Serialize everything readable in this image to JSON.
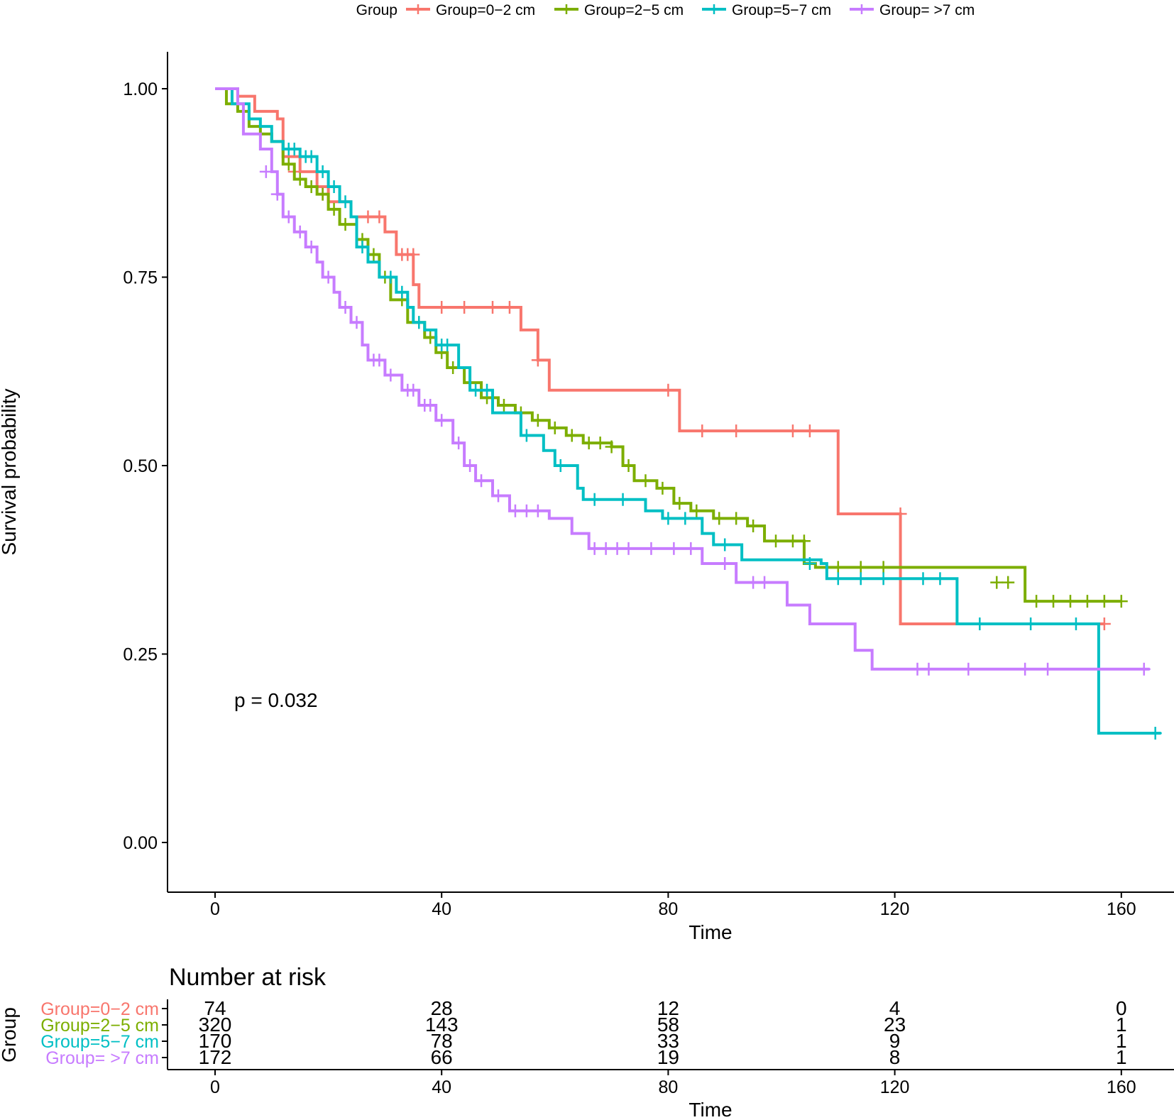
{
  "legend": {
    "title": "Group",
    "items": [
      {
        "label": "Group=0−2 cm"
      },
      {
        "label": "Group=2−5 cm"
      },
      {
        "label": "Group=5−7 cm"
      },
      {
        "label": "Group= >7 cm"
      }
    ]
  },
  "annotation": "p = 0.032",
  "risk_table": {
    "title": "Number at risk",
    "ylabel": "Group",
    "xlabel": "Time"
  },
  "chart_data": {
    "type": "line",
    "subtype": "kaplan-meier",
    "title": "",
    "xlabel": "Time",
    "ylabel": "Survival probability",
    "xlim": [
      -8,
      168
    ],
    "ylim": [
      -0.05,
      1.05
    ],
    "xticks": [
      0,
      40,
      80,
      120,
      160
    ],
    "yticks": [
      0,
      0.25,
      0.5,
      0.75,
      1.0
    ],
    "ytick_labels": [
      "0.00",
      "0.25",
      "0.50",
      "0.75",
      "1.00"
    ],
    "legend_position": "top",
    "series": [
      {
        "name": "Group=0−2 cm",
        "color": "#F8766D",
        "steps": [
          [
            0,
            1.0
          ],
          [
            4,
            0.99
          ],
          [
            7,
            0.97
          ],
          [
            11,
            0.96
          ],
          [
            12,
            0.91
          ],
          [
            15,
            0.89
          ],
          [
            18,
            0.87
          ],
          [
            20,
            0.85
          ],
          [
            24,
            0.83
          ],
          [
            30,
            0.81
          ],
          [
            32,
            0.78
          ],
          [
            35,
            0.74
          ],
          [
            36,
            0.71
          ],
          [
            54,
            0.68
          ],
          [
            57,
            0.64
          ],
          [
            59,
            0.6
          ],
          [
            82,
            0.546
          ],
          [
            110,
            0.436
          ],
          [
            121,
            0.29
          ],
          [
            157,
            0.29
          ]
        ],
        "censors": [
          [
            14,
            0.89
          ],
          [
            19,
            0.86
          ],
          [
            27,
            0.83
          ],
          [
            29,
            0.83
          ],
          [
            33,
            0.78
          ],
          [
            34,
            0.78
          ],
          [
            35,
            0.78
          ],
          [
            40,
            0.71
          ],
          [
            44,
            0.71
          ],
          [
            49,
            0.71
          ],
          [
            52,
            0.71
          ],
          [
            57,
            0.64
          ],
          [
            80,
            0.6
          ],
          [
            86,
            0.546
          ],
          [
            92,
            0.546
          ],
          [
            102,
            0.546
          ],
          [
            105,
            0.546
          ],
          [
            121,
            0.436
          ],
          [
            157,
            0.29
          ]
        ]
      },
      {
        "name": "Group=2−5 cm",
        "color": "#7CAE00",
        "steps": [
          [
            0,
            1.0
          ],
          [
            2,
            0.98
          ],
          [
            4,
            0.97
          ],
          [
            6,
            0.95
          ],
          [
            8,
            0.94
          ],
          [
            10,
            0.93
          ],
          [
            12,
            0.9
          ],
          [
            14,
            0.88
          ],
          [
            16,
            0.87
          ],
          [
            18,
            0.86
          ],
          [
            20,
            0.84
          ],
          [
            22,
            0.82
          ],
          [
            25,
            0.8
          ],
          [
            27,
            0.78
          ],
          [
            29,
            0.75
          ],
          [
            31,
            0.72
          ],
          [
            34,
            0.69
          ],
          [
            37,
            0.67
          ],
          [
            39,
            0.65
          ],
          [
            41,
            0.63
          ],
          [
            44,
            0.61
          ],
          [
            47,
            0.59
          ],
          [
            50,
            0.58
          ],
          [
            53,
            0.57
          ],
          [
            56,
            0.56
          ],
          [
            59,
            0.55
          ],
          [
            62,
            0.54
          ],
          [
            65,
            0.53
          ],
          [
            70,
            0.525
          ],
          [
            72,
            0.5
          ],
          [
            74,
            0.48
          ],
          [
            78,
            0.47
          ],
          [
            81,
            0.45
          ],
          [
            84,
            0.44
          ],
          [
            88,
            0.43
          ],
          [
            94,
            0.42
          ],
          [
            97,
            0.4
          ],
          [
            104,
            0.37
          ],
          [
            106,
            0.365
          ],
          [
            121,
            0.365
          ],
          [
            143,
            0.32
          ],
          [
            160,
            0.32
          ]
        ],
        "censors": [
          [
            13,
            0.9
          ],
          [
            15,
            0.88
          ],
          [
            17,
            0.87
          ],
          [
            19,
            0.86
          ],
          [
            21,
            0.84
          ],
          [
            23,
            0.82
          ],
          [
            26,
            0.8
          ],
          [
            28,
            0.78
          ],
          [
            30,
            0.75
          ],
          [
            33,
            0.72
          ],
          [
            36,
            0.69
          ],
          [
            38,
            0.67
          ],
          [
            40,
            0.65
          ],
          [
            42,
            0.63
          ],
          [
            45,
            0.61
          ],
          [
            48,
            0.59
          ],
          [
            51,
            0.58
          ],
          [
            54,
            0.57
          ],
          [
            57,
            0.56
          ],
          [
            60,
            0.55
          ],
          [
            63,
            0.54
          ],
          [
            66,
            0.53
          ],
          [
            68,
            0.53
          ],
          [
            70,
            0.525
          ],
          [
            73,
            0.5
          ],
          [
            76,
            0.48
          ],
          [
            79,
            0.47
          ],
          [
            82,
            0.45
          ],
          [
            85,
            0.44
          ],
          [
            89,
            0.43
          ],
          [
            92,
            0.43
          ],
          [
            95,
            0.42
          ],
          [
            99,
            0.4
          ],
          [
            102,
            0.4
          ],
          [
            104,
            0.4
          ],
          [
            110,
            0.365
          ],
          [
            114,
            0.365
          ],
          [
            118,
            0.365
          ],
          [
            138,
            0.345
          ],
          [
            140,
            0.345
          ],
          [
            145,
            0.32
          ],
          [
            148,
            0.32
          ],
          [
            151,
            0.32
          ],
          [
            154,
            0.32
          ],
          [
            157,
            0.32
          ],
          [
            160,
            0.32
          ]
        ]
      },
      {
        "name": "Group=5−7 cm",
        "color": "#00BFC4",
        "steps": [
          [
            0,
            1.0
          ],
          [
            3,
            0.98
          ],
          [
            6,
            0.96
          ],
          [
            8,
            0.95
          ],
          [
            10,
            0.93
          ],
          [
            12,
            0.92
          ],
          [
            15,
            0.91
          ],
          [
            18,
            0.89
          ],
          [
            20,
            0.87
          ],
          [
            22,
            0.85
          ],
          [
            24,
            0.83
          ],
          [
            25,
            0.79
          ],
          [
            27,
            0.77
          ],
          [
            29,
            0.75
          ],
          [
            32,
            0.73
          ],
          [
            34,
            0.71
          ],
          [
            35,
            0.69
          ],
          [
            37,
            0.68
          ],
          [
            39,
            0.66
          ],
          [
            43,
            0.63
          ],
          [
            45,
            0.6
          ],
          [
            49,
            0.57
          ],
          [
            54,
            0.54
          ],
          [
            58,
            0.52
          ],
          [
            60,
            0.5
          ],
          [
            64,
            0.47
          ],
          [
            65,
            0.455
          ],
          [
            76,
            0.44
          ],
          [
            79,
            0.43
          ],
          [
            86,
            0.41
          ],
          [
            88,
            0.395
          ],
          [
            93,
            0.375
          ],
          [
            107,
            0.37
          ],
          [
            108,
            0.35
          ],
          [
            131,
            0.29
          ],
          [
            156,
            0.145
          ],
          [
            167,
            0.145
          ]
        ],
        "censors": [
          [
            13,
            0.92
          ],
          [
            14,
            0.92
          ],
          [
            16,
            0.91
          ],
          [
            17,
            0.91
          ],
          [
            19,
            0.89
          ],
          [
            21,
            0.87
          ],
          [
            23,
            0.85
          ],
          [
            26,
            0.79
          ],
          [
            31,
            0.75
          ],
          [
            33,
            0.73
          ],
          [
            36,
            0.69
          ],
          [
            40,
            0.66
          ],
          [
            41,
            0.66
          ],
          [
            46,
            0.6
          ],
          [
            48,
            0.6
          ],
          [
            55,
            0.54
          ],
          [
            61,
            0.5
          ],
          [
            67,
            0.455
          ],
          [
            72,
            0.455
          ],
          [
            80,
            0.43
          ],
          [
            83,
            0.43
          ],
          [
            90,
            0.395
          ],
          [
            105,
            0.37
          ],
          [
            110,
            0.35
          ],
          [
            114,
            0.35
          ],
          [
            118,
            0.35
          ],
          [
            125,
            0.35
          ],
          [
            128,
            0.35
          ],
          [
            135,
            0.29
          ],
          [
            144,
            0.29
          ],
          [
            152,
            0.29
          ],
          [
            166,
            0.145
          ]
        ]
      },
      {
        "name": "Group= >7 cm",
        "color": "#C77CFF",
        "steps": [
          [
            0,
            1.0
          ],
          [
            4,
            0.98
          ],
          [
            5,
            0.94
          ],
          [
            8,
            0.92
          ],
          [
            10,
            0.89
          ],
          [
            11,
            0.86
          ],
          [
            12,
            0.83
          ],
          [
            14,
            0.81
          ],
          [
            16,
            0.79
          ],
          [
            18,
            0.77
          ],
          [
            19,
            0.75
          ],
          [
            21,
            0.73
          ],
          [
            22,
            0.71
          ],
          [
            24,
            0.69
          ],
          [
            26,
            0.66
          ],
          [
            27,
            0.64
          ],
          [
            30,
            0.62
          ],
          [
            33,
            0.6
          ],
          [
            36,
            0.58
          ],
          [
            39,
            0.56
          ],
          [
            42,
            0.53
          ],
          [
            44,
            0.5
          ],
          [
            46,
            0.48
          ],
          [
            49,
            0.46
          ],
          [
            52,
            0.44
          ],
          [
            59,
            0.43
          ],
          [
            63,
            0.41
          ],
          [
            66,
            0.39
          ],
          [
            86,
            0.37
          ],
          [
            92,
            0.345
          ],
          [
            101,
            0.315
          ],
          [
            105,
            0.29
          ],
          [
            113,
            0.255
          ],
          [
            116,
            0.23
          ],
          [
            165,
            0.23
          ]
        ],
        "censors": [
          [
            9,
            0.89
          ],
          [
            11,
            0.86
          ],
          [
            13,
            0.83
          ],
          [
            15,
            0.81
          ],
          [
            17,
            0.79
          ],
          [
            20,
            0.75
          ],
          [
            23,
            0.71
          ],
          [
            25,
            0.69
          ],
          [
            28,
            0.64
          ],
          [
            29,
            0.64
          ],
          [
            31,
            0.62
          ],
          [
            34,
            0.6
          ],
          [
            35,
            0.6
          ],
          [
            37,
            0.58
          ],
          [
            38,
            0.58
          ],
          [
            40,
            0.56
          ],
          [
            43,
            0.53
          ],
          [
            45,
            0.5
          ],
          [
            47,
            0.48
          ],
          [
            50,
            0.46
          ],
          [
            53,
            0.44
          ],
          [
            55,
            0.44
          ],
          [
            57,
            0.44
          ],
          [
            67,
            0.39
          ],
          [
            69,
            0.39
          ],
          [
            71,
            0.39
          ],
          [
            73,
            0.39
          ],
          [
            77,
            0.39
          ],
          [
            81,
            0.39
          ],
          [
            84,
            0.39
          ],
          [
            90,
            0.37
          ],
          [
            95,
            0.345
          ],
          [
            97,
            0.345
          ],
          [
            124,
            0.23
          ],
          [
            126,
            0.23
          ],
          [
            133,
            0.23
          ],
          [
            143,
            0.23
          ],
          [
            147,
            0.23
          ],
          [
            164,
            0.23
          ]
        ]
      }
    ],
    "risk_table": {
      "times": [
        0,
        40,
        80,
        120,
        160
      ],
      "rows": [
        {
          "name": "Group=0−2 cm",
          "values": [
            "74",
            "28",
            "12",
            "4",
            "0"
          ]
        },
        {
          "name": "Group=2−5 cm",
          "values": [
            "320",
            "143",
            "58",
            "23",
            "1"
          ]
        },
        {
          "name": "Group=5−7 cm",
          "values": [
            "170",
            "78",
            "33",
            "9",
            "1"
          ]
        },
        {
          "name": "Group= >7 cm",
          "values": [
            "172",
            "66",
            "19",
            "8",
            "1"
          ]
        }
      ]
    }
  }
}
